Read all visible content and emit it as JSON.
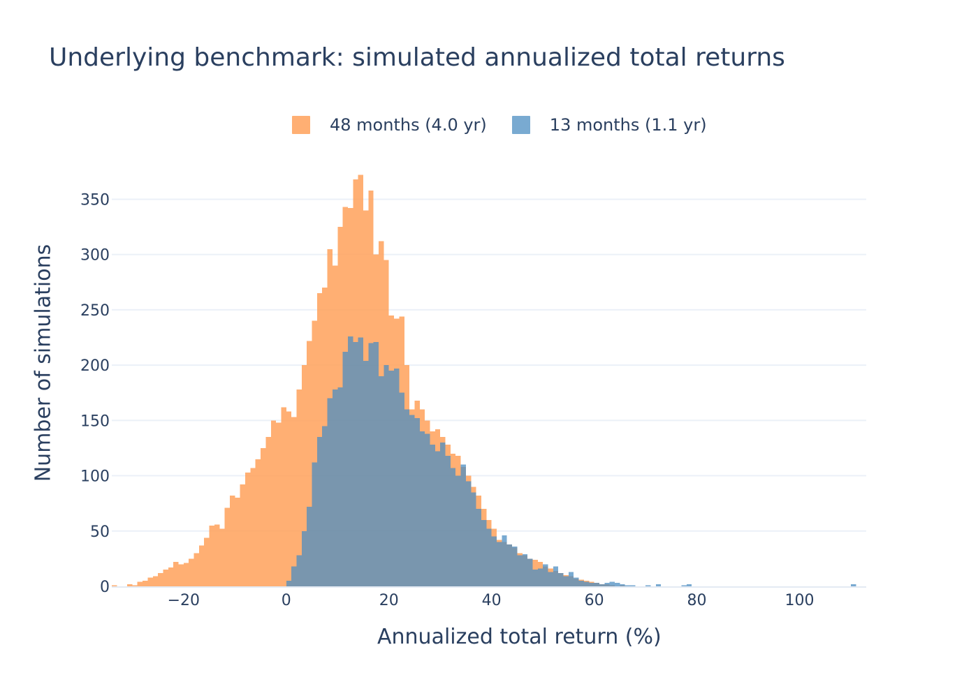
{
  "chart_data": {
    "type": "bar",
    "subtype": "overlaid-histogram",
    "title": "Underlying benchmark: simulated annualized total returns",
    "xlabel": "Annualized total return (%)",
    "ylabel": "Number of simulations",
    "xlim": [
      -34,
      113
    ],
    "ylim": [
      0,
      385
    ],
    "bin_width": 1,
    "xticks": [
      -20,
      0,
      20,
      40,
      60,
      80,
      100
    ],
    "xtick_labels": [
      "−20",
      "0",
      "20",
      "40",
      "60",
      "80",
      "100"
    ],
    "yticks": [
      0,
      50,
      100,
      150,
      200,
      250,
      300,
      350
    ],
    "ytick_labels": [
      "0",
      "50",
      "100",
      "150",
      "200",
      "250",
      "300",
      "350"
    ],
    "grid": true,
    "legend_position": "top-center",
    "series": [
      {
        "name": "48 months (4.0 yr)",
        "color": "#FFA15A",
        "opacity": 0.85,
        "bins": [
          [
            -34,
            1
          ],
          [
            -31,
            2
          ],
          [
            -30,
            1
          ],
          [
            -29,
            4
          ],
          [
            -28,
            5
          ],
          [
            -27,
            8
          ],
          [
            -26,
            9
          ],
          [
            -25,
            12
          ],
          [
            -24,
            15
          ],
          [
            -23,
            17
          ],
          [
            -22,
            22
          ],
          [
            -21,
            20
          ],
          [
            -20,
            21
          ],
          [
            -19,
            25
          ],
          [
            -18,
            30
          ],
          [
            -17,
            37
          ],
          [
            -16,
            44
          ],
          [
            -15,
            55
          ],
          [
            -14,
            56
          ],
          [
            -13,
            52
          ],
          [
            -12,
            71
          ],
          [
            -11,
            82
          ],
          [
            -10,
            80
          ],
          [
            -9,
            92
          ],
          [
            -8,
            103
          ],
          [
            -7,
            107
          ],
          [
            -6,
            115
          ],
          [
            -5,
            125
          ],
          [
            -4,
            135
          ],
          [
            -3,
            150
          ],
          [
            -2,
            148
          ],
          [
            -1,
            162
          ],
          [
            0,
            158
          ],
          [
            1,
            153
          ],
          [
            2,
            178
          ],
          [
            3,
            200
          ],
          [
            4,
            222
          ],
          [
            5,
            240
          ],
          [
            6,
            265
          ],
          [
            7,
            270
          ],
          [
            8,
            305
          ],
          [
            9,
            290
          ],
          [
            10,
            325
          ],
          [
            11,
            343
          ],
          [
            12,
            342
          ],
          [
            13,
            368
          ],
          [
            14,
            372
          ],
          [
            15,
            340
          ],
          [
            16,
            358
          ],
          [
            17,
            300
          ],
          [
            18,
            312
          ],
          [
            19,
            295
          ],
          [
            20,
            245
          ],
          [
            21,
            242
          ],
          [
            22,
            244
          ],
          [
            23,
            200
          ],
          [
            24,
            160
          ],
          [
            25,
            168
          ],
          [
            26,
            160
          ],
          [
            27,
            150
          ],
          [
            28,
            140
          ],
          [
            29,
            142
          ],
          [
            30,
            135
          ],
          [
            31,
            128
          ],
          [
            32,
            120
          ],
          [
            33,
            118
          ],
          [
            34,
            108
          ],
          [
            35,
            100
          ],
          [
            36,
            90
          ],
          [
            37,
            82
          ],
          [
            38,
            70
          ],
          [
            39,
            60
          ],
          [
            40,
            52
          ],
          [
            41,
            42
          ],
          [
            42,
            40
          ],
          [
            43,
            38
          ],
          [
            44,
            35
          ],
          [
            45,
            30
          ],
          [
            46,
            28
          ],
          [
            47,
            25
          ],
          [
            48,
            24
          ],
          [
            49,
            22
          ],
          [
            50,
            18
          ],
          [
            51,
            16
          ],
          [
            52,
            14
          ],
          [
            53,
            12
          ],
          [
            54,
            10
          ],
          [
            55,
            9
          ],
          [
            56,
            7
          ],
          [
            57,
            6
          ],
          [
            58,
            5
          ],
          [
            59,
            4
          ],
          [
            60,
            3
          ],
          [
            61,
            2
          ],
          [
            62,
            2
          ],
          [
            63,
            1
          ],
          [
            65,
            1
          ]
        ]
      },
      {
        "name": "13 months (1.1 yr)",
        "color": "#4C8EC2",
        "opacity": 0.75,
        "bins": [
          [
            0,
            5
          ],
          [
            1,
            18
          ],
          [
            2,
            28
          ],
          [
            3,
            50
          ],
          [
            4,
            72
          ],
          [
            5,
            112
          ],
          [
            6,
            135
          ],
          [
            7,
            145
          ],
          [
            8,
            170
          ],
          [
            9,
            178
          ],
          [
            10,
            180
          ],
          [
            11,
            212
          ],
          [
            12,
            226
          ],
          [
            13,
            221
          ],
          [
            14,
            225
          ],
          [
            15,
            204
          ],
          [
            16,
            220
          ],
          [
            17,
            221
          ],
          [
            18,
            190
          ],
          [
            19,
            200
          ],
          [
            20,
            195
          ],
          [
            21,
            197
          ],
          [
            22,
            175
          ],
          [
            23,
            160
          ],
          [
            24,
            155
          ],
          [
            25,
            152
          ],
          [
            26,
            140
          ],
          [
            27,
            138
          ],
          [
            28,
            128
          ],
          [
            29,
            122
          ],
          [
            30,
            130
          ],
          [
            31,
            118
          ],
          [
            32,
            107
          ],
          [
            33,
            100
          ],
          [
            34,
            110
          ],
          [
            35,
            95
          ],
          [
            36,
            85
          ],
          [
            37,
            70
          ],
          [
            38,
            60
          ],
          [
            39,
            52
          ],
          [
            40,
            45
          ],
          [
            41,
            40
          ],
          [
            42,
            46
          ],
          [
            43,
            38
          ],
          [
            44,
            36
          ],
          [
            45,
            28
          ],
          [
            46,
            29
          ],
          [
            47,
            25
          ],
          [
            48,
            15
          ],
          [
            49,
            16
          ],
          [
            50,
            20
          ],
          [
            51,
            13
          ],
          [
            52,
            18
          ],
          [
            53,
            12
          ],
          [
            54,
            9
          ],
          [
            55,
            13
          ],
          [
            56,
            8
          ],
          [
            57,
            5
          ],
          [
            58,
            4
          ],
          [
            59,
            3
          ],
          [
            60,
            3
          ],
          [
            61,
            2
          ],
          [
            62,
            3
          ],
          [
            63,
            4
          ],
          [
            64,
            3
          ],
          [
            65,
            2
          ],
          [
            66,
            1
          ],
          [
            67,
            1
          ],
          [
            70,
            1
          ],
          [
            72,
            2
          ],
          [
            77,
            1
          ],
          [
            78,
            2
          ],
          [
            110,
            2
          ]
        ]
      }
    ]
  }
}
